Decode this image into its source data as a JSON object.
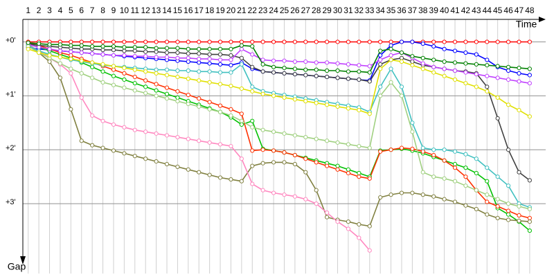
{
  "chart_data": {
    "type": "line",
    "x_label": "Time",
    "y_label": "Gap",
    "x": [
      1,
      2,
      3,
      4,
      5,
      6,
      7,
      8,
      9,
      10,
      11,
      12,
      13,
      14,
      15,
      16,
      17,
      18,
      19,
      20,
      21,
      22,
      23,
      24,
      25,
      26,
      27,
      28,
      29,
      30,
      31,
      32,
      33,
      34,
      35,
      36,
      37,
      38,
      39,
      40,
      41,
      42,
      43,
      44,
      45,
      46,
      47,
      48
    ],
    "xlim": [
      0.5,
      49.5
    ],
    "ylim": [
      -25,
      250
    ],
    "y_reversed": true,
    "yticks": [
      {
        "value": 0,
        "label": "+0'"
      },
      {
        "value": 60,
        "label": "+1'"
      },
      {
        "value": 120,
        "label": "+2'"
      },
      {
        "value": 180,
        "label": "+3'"
      }
    ],
    "grid": true,
    "series": [
      {
        "color": "#ff0000",
        "values": [
          0,
          0,
          0,
          0,
          0,
          0,
          0,
          0,
          0,
          0,
          0,
          0,
          0,
          0,
          0,
          0,
          0,
          0,
          0,
          0,
          0,
          0,
          0,
          0,
          0,
          0,
          0,
          0,
          0,
          0,
          0,
          0,
          0,
          0,
          0,
          0,
          0,
          0,
          0,
          0,
          0,
          0,
          0,
          0,
          0,
          0,
          0,
          0
        ]
      },
      {
        "color": "#0000ff",
        "values": [
          6,
          8,
          9,
          10,
          11,
          12,
          13,
          14,
          15,
          16,
          17,
          18,
          19,
          20,
          21,
          22,
          23,
          24,
          25,
          26,
          23,
          30,
          33,
          34,
          35,
          36,
          37,
          38,
          39,
          40,
          41,
          42,
          43,
          15,
          4,
          0,
          0,
          2,
          5,
          8,
          10,
          12,
          14,
          20,
          28,
          32,
          35,
          37
        ]
      },
      {
        "color": "#00c000",
        "values": [
          2,
          6,
          10,
          14,
          18,
          23,
          28,
          33,
          38,
          42,
          46,
          50,
          54,
          58,
          62,
          66,
          70,
          74,
          78,
          84,
          92,
          88,
          119,
          121,
          123,
          126,
          129,
          132,
          135,
          138,
          142,
          146,
          150,
          121,
          120,
          119,
          121,
          124,
          128,
          132,
          136,
          140,
          146,
          155,
          185,
          192,
          200,
          210
        ]
      },
      {
        "color": "#ff3000",
        "values": [
          1,
          4,
          8,
          12,
          15,
          19,
          23,
          27,
          31,
          35,
          39,
          43,
          47,
          51,
          55,
          59,
          63,
          67,
          71,
          75,
          80,
          121,
          120,
          121,
          123,
          126,
          130,
          134,
          138,
          142,
          146,
          150,
          152,
          122,
          120,
          118,
          119,
          122,
          126,
          132,
          140,
          150,
          165,
          178,
          183,
          188,
          193,
          196
        ]
      },
      {
        "color": "#808040",
        "values": [
          4,
          12,
          22,
          40,
          75,
          110,
          115,
          118,
          121,
          124,
          127,
          130,
          133,
          136,
          139,
          142,
          145,
          148,
          151,
          153,
          155,
          138,
          135,
          134,
          134,
          136,
          145,
          165,
          195,
          198,
          200,
          203,
          205,
          173,
          170,
          168,
          168,
          170,
          172,
          175,
          178,
          182,
          186,
          192,
          196,
          198,
          199,
          200
        ]
      },
      {
        "color": "#ff88c0",
        "values": [
          3,
          10,
          18,
          25,
          35,
          62,
          82,
          88,
          92,
          95,
          98,
          100,
          102,
          104,
          106,
          108,
          110,
          112,
          114,
          116,
          130,
          158,
          165,
          168,
          170,
          172,
          175,
          180,
          190,
          200,
          208,
          218,
          232,
          null,
          null,
          null,
          null,
          null,
          null,
          null,
          null,
          null,
          null,
          null,
          null,
          null,
          null,
          null
        ]
      },
      {
        "color": "#404040",
        "values": [
          2,
          4,
          5,
          6,
          7,
          8,
          8,
          9,
          9,
          10,
          10,
          11,
          11,
          12,
          12,
          13,
          13,
          14,
          14,
          15,
          18,
          28,
          33,
          34,
          35,
          36,
          37,
          38,
          39,
          40,
          41,
          42,
          44,
          25,
          20,
          18,
          22,
          26,
          28,
          30,
          32,
          33,
          35,
          50,
          85,
          120,
          145,
          154
        ]
      },
      {
        "color": "#c040ff",
        "values": [
          3,
          6,
          8,
          10,
          11,
          12,
          13,
          14,
          15,
          15,
          16,
          16,
          17,
          17,
          18,
          18,
          19,
          19,
          20,
          20,
          8,
          14,
          20,
          21,
          21,
          22,
          22,
          23,
          23,
          24,
          25,
          26,
          27,
          20,
          15,
          12,
          18,
          24,
          28,
          30,
          32,
          34,
          36,
          38,
          40,
          42,
          44,
          46
        ]
      },
      {
        "color": "#40c0c0",
        "values": [
          4,
          10,
          14,
          17,
          20,
          22,
          24,
          26,
          27,
          28,
          29,
          30,
          31,
          31,
          32,
          32,
          33,
          33,
          34,
          34,
          25,
          50,
          55,
          57,
          59,
          61,
          63,
          65,
          67,
          69,
          71,
          73,
          78,
          50,
          30,
          50,
          90,
          118,
          120,
          120,
          122,
          125,
          130,
          140,
          150,
          160,
          180,
          184
        ]
      },
      {
        "color": "#a0d080",
        "values": [
          5,
          12,
          18,
          24,
          30,
          35,
          40,
          45,
          48,
          51,
          54,
          57,
          60,
          63,
          66,
          69,
          72,
          75,
          78,
          82,
          88,
          95,
          98,
          100,
          102,
          104,
          106,
          108,
          110,
          112,
          114,
          116,
          118,
          60,
          45,
          60,
          100,
          145,
          150,
          152,
          155,
          160,
          165,
          170,
          175,
          180,
          183,
          186
        ]
      },
      {
        "color": "#008000",
        "values": [
          1,
          2,
          3,
          3,
          4,
          4,
          5,
          5,
          5,
          6,
          6,
          6,
          7,
          7,
          7,
          8,
          8,
          8,
          8,
          8,
          4,
          5,
          25,
          28,
          29,
          30,
          31,
          31,
          32,
          32,
          33,
          33,
          34,
          10,
          8,
          12,
          16,
          18,
          20,
          22,
          23,
          24,
          25,
          26,
          27,
          28,
          29,
          30
        ]
      },
      {
        "color": "#e0e000",
        "values": [
          8,
          12,
          15,
          17,
          19,
          21,
          23,
          25,
          27,
          29,
          31,
          33,
          35,
          37,
          39,
          41,
          43,
          45,
          47,
          49,
          52,
          55,
          58,
          60,
          62,
          64,
          66,
          68,
          70,
          72,
          74,
          76,
          80,
          30,
          20,
          22,
          26,
          30,
          34,
          38,
          42,
          46,
          50,
          55,
          62,
          70,
          76,
          83
        ]
      }
    ]
  }
}
